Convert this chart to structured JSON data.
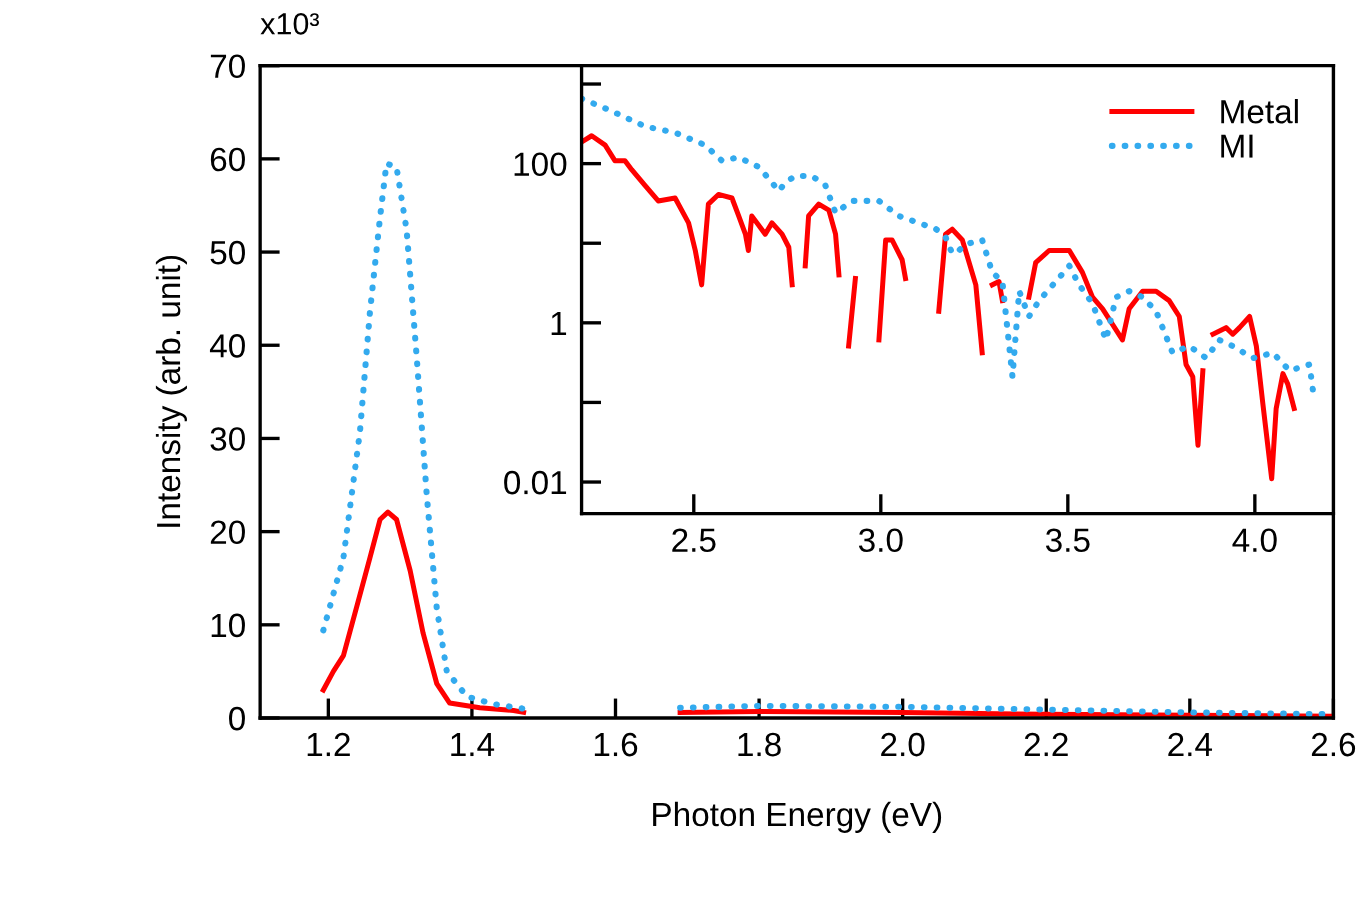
{
  "chart_data": [
    {
      "type": "line",
      "xlabel": "Photon Energy (eV)",
      "ylabel": "Intensity (arb. unit)",
      "xlim": [
        1.105,
        2.6
      ],
      "xticks": [
        1.2,
        1.4,
        1.6,
        1.8,
        {
          "value": 2.0,
          "label": "2.0"
        },
        2.2,
        2.4,
        2.6
      ],
      "ylim": [
        0,
        70
      ],
      "yticks": [
        0,
        10,
        20,
        30,
        40,
        50,
        60,
        70
      ],
      "annotations": [
        "x10³"
      ],
      "series": [
        {
          "color": "#ff0000",
          "line_style": "solid",
          "x": [
            1.193,
            1.207,
            1.221,
            1.239,
            1.258,
            1.272,
            1.283,
            1.295,
            1.314,
            1.332,
            1.351,
            1.369,
            1.411,
            1.458,
            1.472,
            null,
            1.69,
            1.8,
            2.0,
            2.2,
            2.4,
            2.6
          ],
          "values": [
            3.0,
            5.0,
            6.7,
            11.8,
            17.2,
            21.3,
            22.1,
            21.3,
            15.8,
            9.1,
            3.7,
            1.6,
            1.1,
            0.8,
            0.6,
            null,
            0.6,
            0.7,
            0.6,
            0.4,
            0.3,
            0.2
          ]
        },
        {
          "color": "#33aaee",
          "line_style": "dotted",
          "x": [
            1.193,
            1.221,
            1.244,
            1.258,
            1.272,
            1.281,
            1.295,
            1.309,
            1.323,
            1.337,
            1.351,
            1.365,
            1.393,
            1.43,
            1.472,
            null,
            1.69,
            1.8,
            2.0,
            2.2,
            2.4,
            2.6
          ],
          "values": [
            9.4,
            17.2,
            30.7,
            43.6,
            53.7,
            59.5,
            59.1,
            52.4,
            38.8,
            24.0,
            11.8,
            5.0,
            2.3,
            1.5,
            1.0,
            null,
            1.1,
            1.3,
            1.2,
            0.9,
            0.6,
            0.4
          ]
        }
      ]
    },
    {
      "type": "line",
      "log": true,
      "legend": "top right",
      "xlim": [
        2.2,
        4.21
      ],
      "xticks": [
        2.5,
        {
          "value": 3.0,
          "label": "3.0"
        },
        3.5,
        {
          "value": 4.0,
          "label": "4.0"
        }
      ],
      "ylim": [
        0.004,
        1700
      ],
      "yticks": [
        {
          "value": 1000,
          "label": null
        },
        100,
        {
          "value": 10,
          "label": null
        },
        1,
        {
          "value": 0.1,
          "label": null
        },
        0.01
      ],
      "series": [
        {
          "name": "Metal",
          "color": "#ff0000",
          "line_style": "solid",
          "x": [
            2.2,
            2.227,
            2.263,
            2.289,
            2.316,
            2.334,
            2.37,
            2.405,
            2.45,
            2.486,
            2.504,
            2.521,
            2.539,
            2.566,
            2.602,
            2.62,
            2.638,
            2.646,
            2.655,
            2.673,
            2.691,
            2.709,
            2.736,
            2.754,
            2.763,
            null,
            2.798,
            2.807,
            2.834,
            2.861,
            2.879,
            2.888,
            null,
            2.914,
            2.932,
            null,
            2.995,
            3.013,
            3.03,
            3.057,
            3.066,
            null,
            3.155,
            3.173,
            3.191,
            3.218,
            3.254,
            3.271,
            null,
            3.298,
            3.316,
            3.325,
            null,
            3.396,
            3.414,
            3.45,
            3.504,
            3.539,
            3.566,
            3.593,
            3.646,
            3.664,
            3.7,
            3.736,
            3.771,
            3.798,
            3.816,
            3.834,
            3.848,
            3.861,
            null,
            3.888,
            3.923,
            3.941,
            3.959,
            3.986,
            4.004,
            4.021,
            4.045,
            4.057,
            4.075,
            4.088,
            4.105
          ],
          "values": [
            187,
            224,
            171,
            109,
            109,
            84,
            53,
            34,
            37,
            18,
            8.1,
            3.0,
            31,
            41,
            37,
            22,
            13,
            8.1,
            22,
            17,
            13,
            18,
            13,
            8.9,
            3.0,
            null,
            5.2,
            22,
            31,
            26,
            13,
            4.0,
            null,
            0.51,
            3.6,
            null,
            0.61,
            11,
            11,
            6.2,
            3.6,
            null,
            1.4,
            13,
            15,
            11,
            3.0,
            0.42,
            null,
            3.0,
            3.3,
            1.9,
            null,
            2.1,
            5.7,
            8.1,
            8.1,
            4.3,
            2.1,
            1.5,
            0.61,
            1.5,
            2.5,
            2.5,
            1.9,
            1.2,
            0.3,
            0.21,
            0.029,
            0.25,
            null,
            0.72,
            0.87,
            0.72,
            0.87,
            1.2,
            0.51,
            0.1,
            0.011,
            0.084,
            0.23,
            0.17,
            0.084
          ]
        },
        {
          "name": "MI",
          "color": "#33aaee",
          "line_style": "dotted",
          "x": [
            2.2,
            2.28,
            2.37,
            2.45,
            2.53,
            2.575,
            2.62,
            2.673,
            2.709,
            2.727,
            2.745,
            2.771,
            2.816,
            2.852,
            2.879,
            2.923,
            2.995,
            3.048,
            3.102,
            3.148,
            3.173,
            3.191,
            3.209,
            3.227,
            3.271,
            3.298,
            3.325,
            3.352,
            3.37,
            3.396,
            3.423,
            3.468,
            3.504,
            3.53,
            3.566,
            3.602,
            3.629,
            3.664,
            3.7,
            3.736,
            3.78,
            3.825,
            3.87,
            3.905,
            3.941,
            3.995,
            4.048,
            4.093,
            4.146,
            4.155
          ],
          "values": [
            656,
            458,
            293,
            245,
            171,
            109,
            120,
            91,
            58,
            45,
            58,
            70,
            70,
            53,
            24,
            34,
            34,
            22,
            18,
            15,
            12,
            7.4,
            8.1,
            9.7,
            11,
            4.3,
            3.3,
            0.21,
            2.5,
            1.2,
            1.9,
            3.3,
            5.2,
            3.0,
            1.75,
            0.61,
            2.1,
            2.5,
            2.1,
            1.4,
            0.42,
            0.51,
            0.36,
            0.61,
            0.51,
            0.36,
            0.42,
            0.25,
            0.3,
            0.145
          ]
        }
      ]
    }
  ]
}
